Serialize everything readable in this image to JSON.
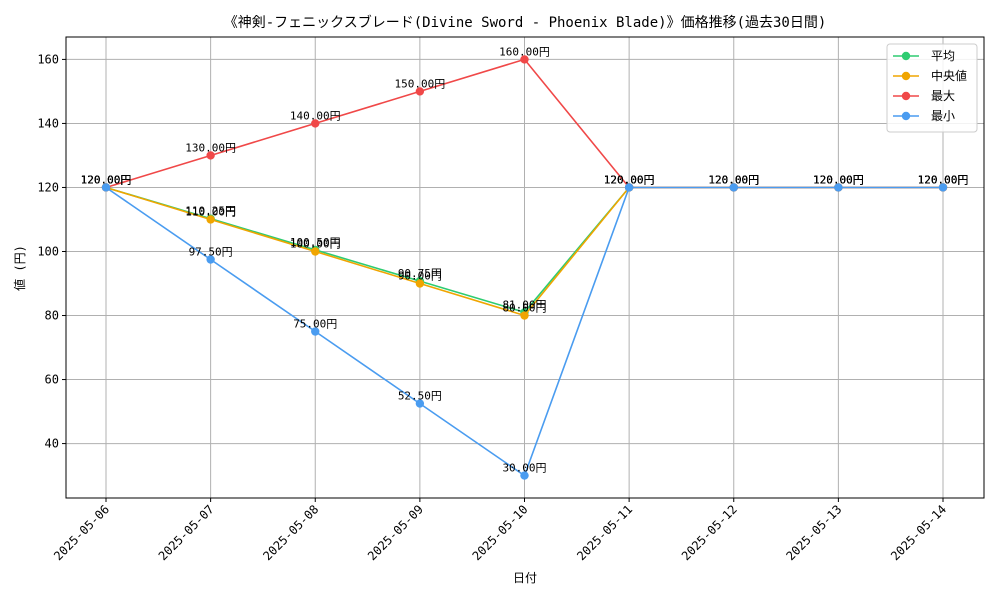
{
  "chart_data": {
    "type": "line",
    "title": "《神剣-フェニックスブレード(Divine Sword - Phoenix Blade)》価格推移(過去30日間)",
    "xlabel": "日付",
    "ylabel": "値 (円)",
    "categories": [
      "2025-05-06",
      "2025-05-07",
      "2025-05-08",
      "2025-05-09",
      "2025-05-10",
      "2025-05-11",
      "2025-05-12",
      "2025-05-13",
      "2025-05-14"
    ],
    "ylim": [
      23,
      167
    ],
    "yticks": [
      40,
      60,
      80,
      100,
      120,
      140,
      160
    ],
    "grid": true,
    "legend_position": "top-right",
    "label_suffix": "円",
    "series": [
      {
        "name": "平均",
        "color": "#2ecc71",
        "values": [
          120,
          110.25,
          100.5,
          90.75,
          81.0,
          120,
          120,
          120,
          120
        ]
      },
      {
        "name": "中央値",
        "color": "#f0a500",
        "values": [
          120,
          110.0,
          100.0,
          90.0,
          80.0,
          120,
          120,
          120,
          120
        ]
      },
      {
        "name": "最大",
        "color": "#f04848",
        "values": [
          120,
          130,
          140,
          150,
          160,
          120,
          120,
          120,
          120
        ]
      },
      {
        "name": "最小",
        "color": "#4a9cf0",
        "values": [
          120,
          97.5,
          75,
          52.5,
          30,
          120,
          120,
          120,
          120
        ]
      }
    ]
  }
}
